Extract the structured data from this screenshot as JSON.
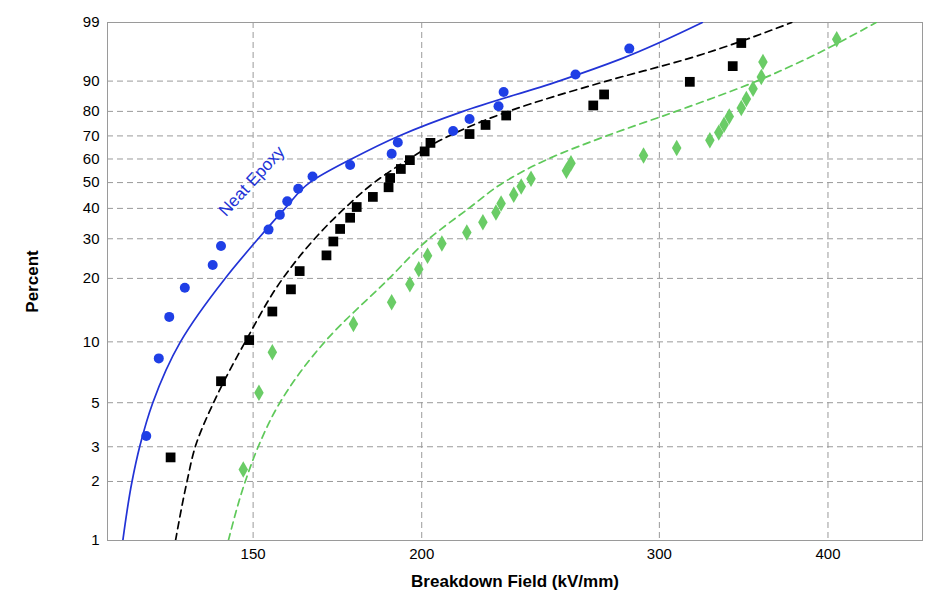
{
  "chart_data": {
    "type": "scatter",
    "x_label": "Breakdown Field (kV/mm)",
    "y_label": "Percent",
    "log": "x",
    "grid": true,
    "xlim": [
      117,
      470
    ],
    "xticks": [
      150,
      200,
      300,
      400
    ],
    "ylim": [
      1,
      99
    ],
    "yticks": [
      1,
      2,
      3,
      5,
      10,
      20,
      30,
      40,
      50,
      60,
      70,
      80,
      90,
      99
    ],
    "series": [
      {
        "name": "Neat Epoxy",
        "type": "line",
        "line_style": "solid",
        "color": "#2233d6",
        "x": [
          120.1,
          122,
          123.6,
          126.4,
          132.5,
          143,
          151.3,
          158.4,
          165.2,
          177.4,
          192.4,
          214.6,
          252.7,
          281,
          322.8
        ],
        "values": [
          1,
          2,
          3,
          5,
          10,
          20,
          30,
          40,
          50,
          60,
          70,
          80,
          90,
          95,
          99
        ]
      },
      {
        "type": "line",
        "line_style": "dashed",
        "color": "#000000",
        "x": [
          131.4,
          134,
          135.9,
          140.2,
          148,
          157.8,
          166.6,
          175.3,
          184.4,
          195.7,
          209.5,
          231.9,
          274.1,
          314.7,
          376
        ],
        "values": [
          1,
          2,
          3,
          5,
          10,
          20,
          30,
          40,
          50,
          60,
          70,
          80,
          90,
          95,
          99
        ]
      },
      {
        "type": "line",
        "line_style": "dashed",
        "color": "#5fc95a",
        "x": [
          143.8,
          148,
          151.3,
          157,
          169.5,
          189.2,
          202.5,
          216.7,
          229.9,
          248.1,
          274.1,
          308.6,
          354.2,
          385.6,
          434.2
        ],
        "values": [
          1,
          2,
          3,
          5,
          10,
          20,
          30,
          40,
          50,
          60,
          70,
          80,
          90,
          95,
          99
        ]
      },
      {
        "type": "scatter",
        "marker": "circle",
        "color": "#1f3fe6",
        "x": [
          125,
          127.7,
          130,
          133.5,
          140,
          142,
          154,
          157,
          159,
          162,
          166,
          177,
          190,
          192,
          211,
          217,
          228,
          230,
          260,
          285
        ],
        "values": [
          3.4,
          8.3,
          13.2,
          18.1,
          23,
          27.9,
          32.8,
          37.7,
          42.6,
          47.5,
          52.5,
          57.4,
          62.3,
          67.2,
          72.1,
          77,
          81.9,
          86.8,
          91.7,
          96.6
        ]
      },
      {
        "type": "scatter",
        "marker": "square",
        "color": "#000000",
        "x": [
          130.3,
          142,
          149,
          155,
          160,
          162.4,
          170,
          172,
          174,
          177,
          179,
          184,
          189,
          189.5,
          193,
          196,
          201,
          203,
          217,
          223,
          231,
          268,
          273,
          316,
          340,
          345
        ],
        "values": [
          2.65,
          6.4,
          10.2,
          14,
          17.8,
          21.6,
          25.4,
          29.2,
          33,
          36.7,
          40.5,
          44.3,
          48.1,
          51.9,
          55.7,
          59.5,
          63.3,
          67,
          70.8,
          74.6,
          78.4,
          82.2,
          86,
          89.8,
          93.6,
          97.3
        ]
      },
      {
        "type": "scatter",
        "marker": "diamond",
        "color": "#6acc66",
        "x": [
          147.5,
          151.5,
          155,
          178,
          190,
          196,
          199,
          202,
          207,
          216,
          222,
          227,
          229,
          234,
          237,
          241,
          256,
          258,
          292,
          309,
          327,
          332,
          335,
          338,
          345,
          348,
          352,
          357,
          358,
          406
        ],
        "values": [
          2.3,
          5.6,
          8.9,
          12.2,
          15.5,
          18.8,
          22,
          25.3,
          28.6,
          31.9,
          35.2,
          38.5,
          41.8,
          45.1,
          48.4,
          51.6,
          54.9,
          58.2,
          61.5,
          64.8,
          68.1,
          71.4,
          74.7,
          78,
          81.3,
          84.5,
          87.8,
          91.1,
          94.4,
          97.7
        ]
      }
    ]
  }
}
